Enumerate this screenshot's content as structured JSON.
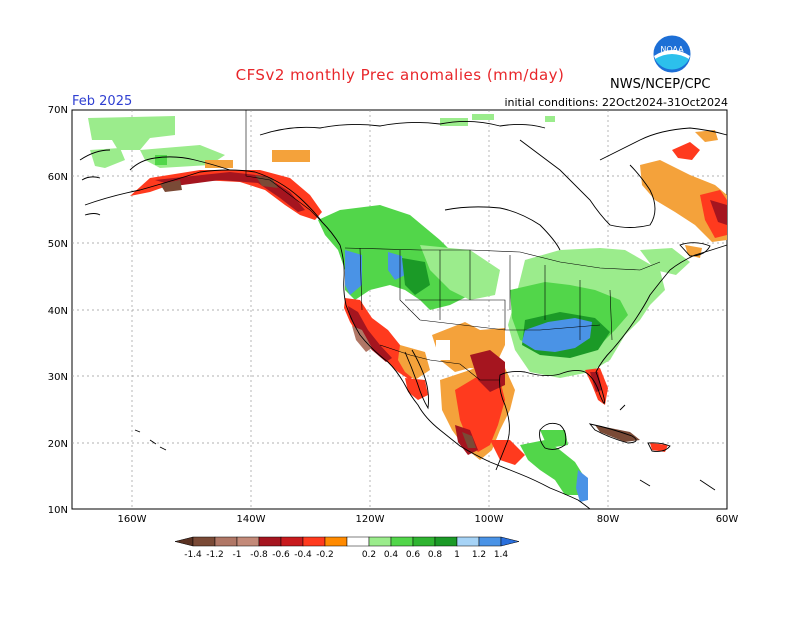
{
  "header": {
    "title": "CFSv2 monthly Prec anomalies (mm/day)",
    "month": "Feb 2025",
    "initial_conditions": "initial conditions: 22Oct2024-31Oct2024",
    "agency": "NWS/NCEP/CPC",
    "logo_text": "NOAA"
  },
  "axes": {
    "lat_labels": [
      "70N",
      "60N",
      "50N",
      "40N",
      "30N",
      "20N",
      "10N"
    ],
    "lon_labels": [
      "160W",
      "140W",
      "120W",
      "100W",
      "80W",
      "60W"
    ]
  },
  "legend": {
    "labels": [
      "-1.4",
      "-1.2",
      "-1",
      "-0.8",
      "-0.6",
      "-0.4",
      "-0.2",
      "0.2",
      "0.4",
      "0.6",
      "0.8",
      "1",
      "1.2",
      "1.4"
    ],
    "colors": [
      "#7a4a36",
      "#b07766",
      "#c38a79",
      "#a5151f",
      "#c81a1d",
      "#ff3a1e",
      "#ff8a00",
      "#f4a23b",
      "#ffffff",
      "#9bec8c",
      "#52d64a",
      "#2fb431",
      "#1b9a27",
      "#a6d3f6",
      "#4a93e6",
      "#2a6fdc"
    ]
  },
  "colors": {
    "dry_strong": "#a5151f",
    "dry_mid": "#ff3a1e",
    "dry_weak": "#f4a23b",
    "brown": "#7a4a36",
    "wet_weak": "#9bec8c",
    "wet_mid": "#52d64a",
    "wet_strong": "#1b9a27",
    "wet_blue": "#4a93e6"
  }
}
